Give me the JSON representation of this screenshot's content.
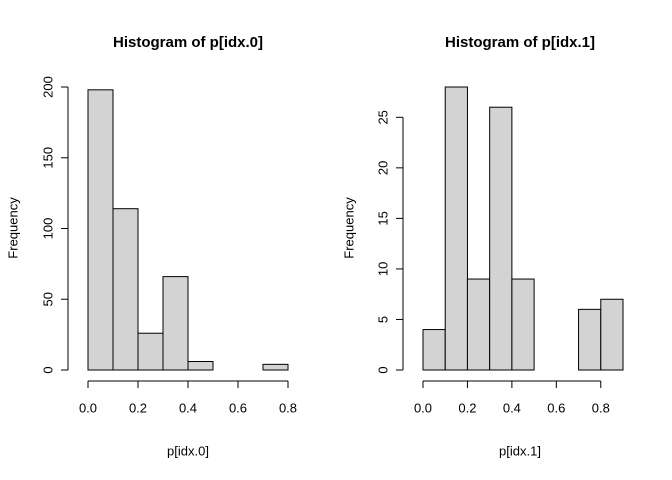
{
  "chart_data": [
    {
      "type": "histogram",
      "title": "Histogram of p[idx.0]",
      "x_label": "p[idx.0]",
      "y_label": "Frequency",
      "bins": [
        0,
        0.1,
        0.2,
        0.3,
        0.4,
        0.5,
        0.6,
        0.7,
        0.8
      ],
      "values": [
        198,
        114,
        26,
        66,
        6,
        0,
        0,
        4
      ],
      "color": "#d3d3d3",
      "xlim": [
        0,
        0.8
      ],
      "ylim": [
        0,
        200
      ],
      "xticks": [
        {
          "value": 0,
          "label": "0.0"
        },
        0.2,
        0.4,
        0.6,
        0.8
      ],
      "yticks": [
        0,
        50,
        100,
        150,
        200
      ]
    },
    {
      "type": "histogram",
      "title": "Histogram of p[idx.1]",
      "x_label": "p[idx.1]",
      "y_label": "Frequency",
      "bins": [
        0,
        0.1,
        0.2,
        0.3,
        0.4,
        0.5,
        0.6,
        0.7,
        0.8,
        0.9
      ],
      "values": [
        4,
        28,
        9,
        26,
        9,
        0,
        0,
        6,
        7
      ],
      "color": "#d3d3d3",
      "xlim": [
        0,
        0.9
      ],
      "ylim": [
        0,
        28
      ],
      "xticks": [
        {
          "value": 0,
          "label": "0.0"
        },
        0.2,
        0.4,
        0.6,
        0.8
      ],
      "yticks": [
        0,
        5,
        10,
        15,
        20,
        25
      ]
    }
  ]
}
